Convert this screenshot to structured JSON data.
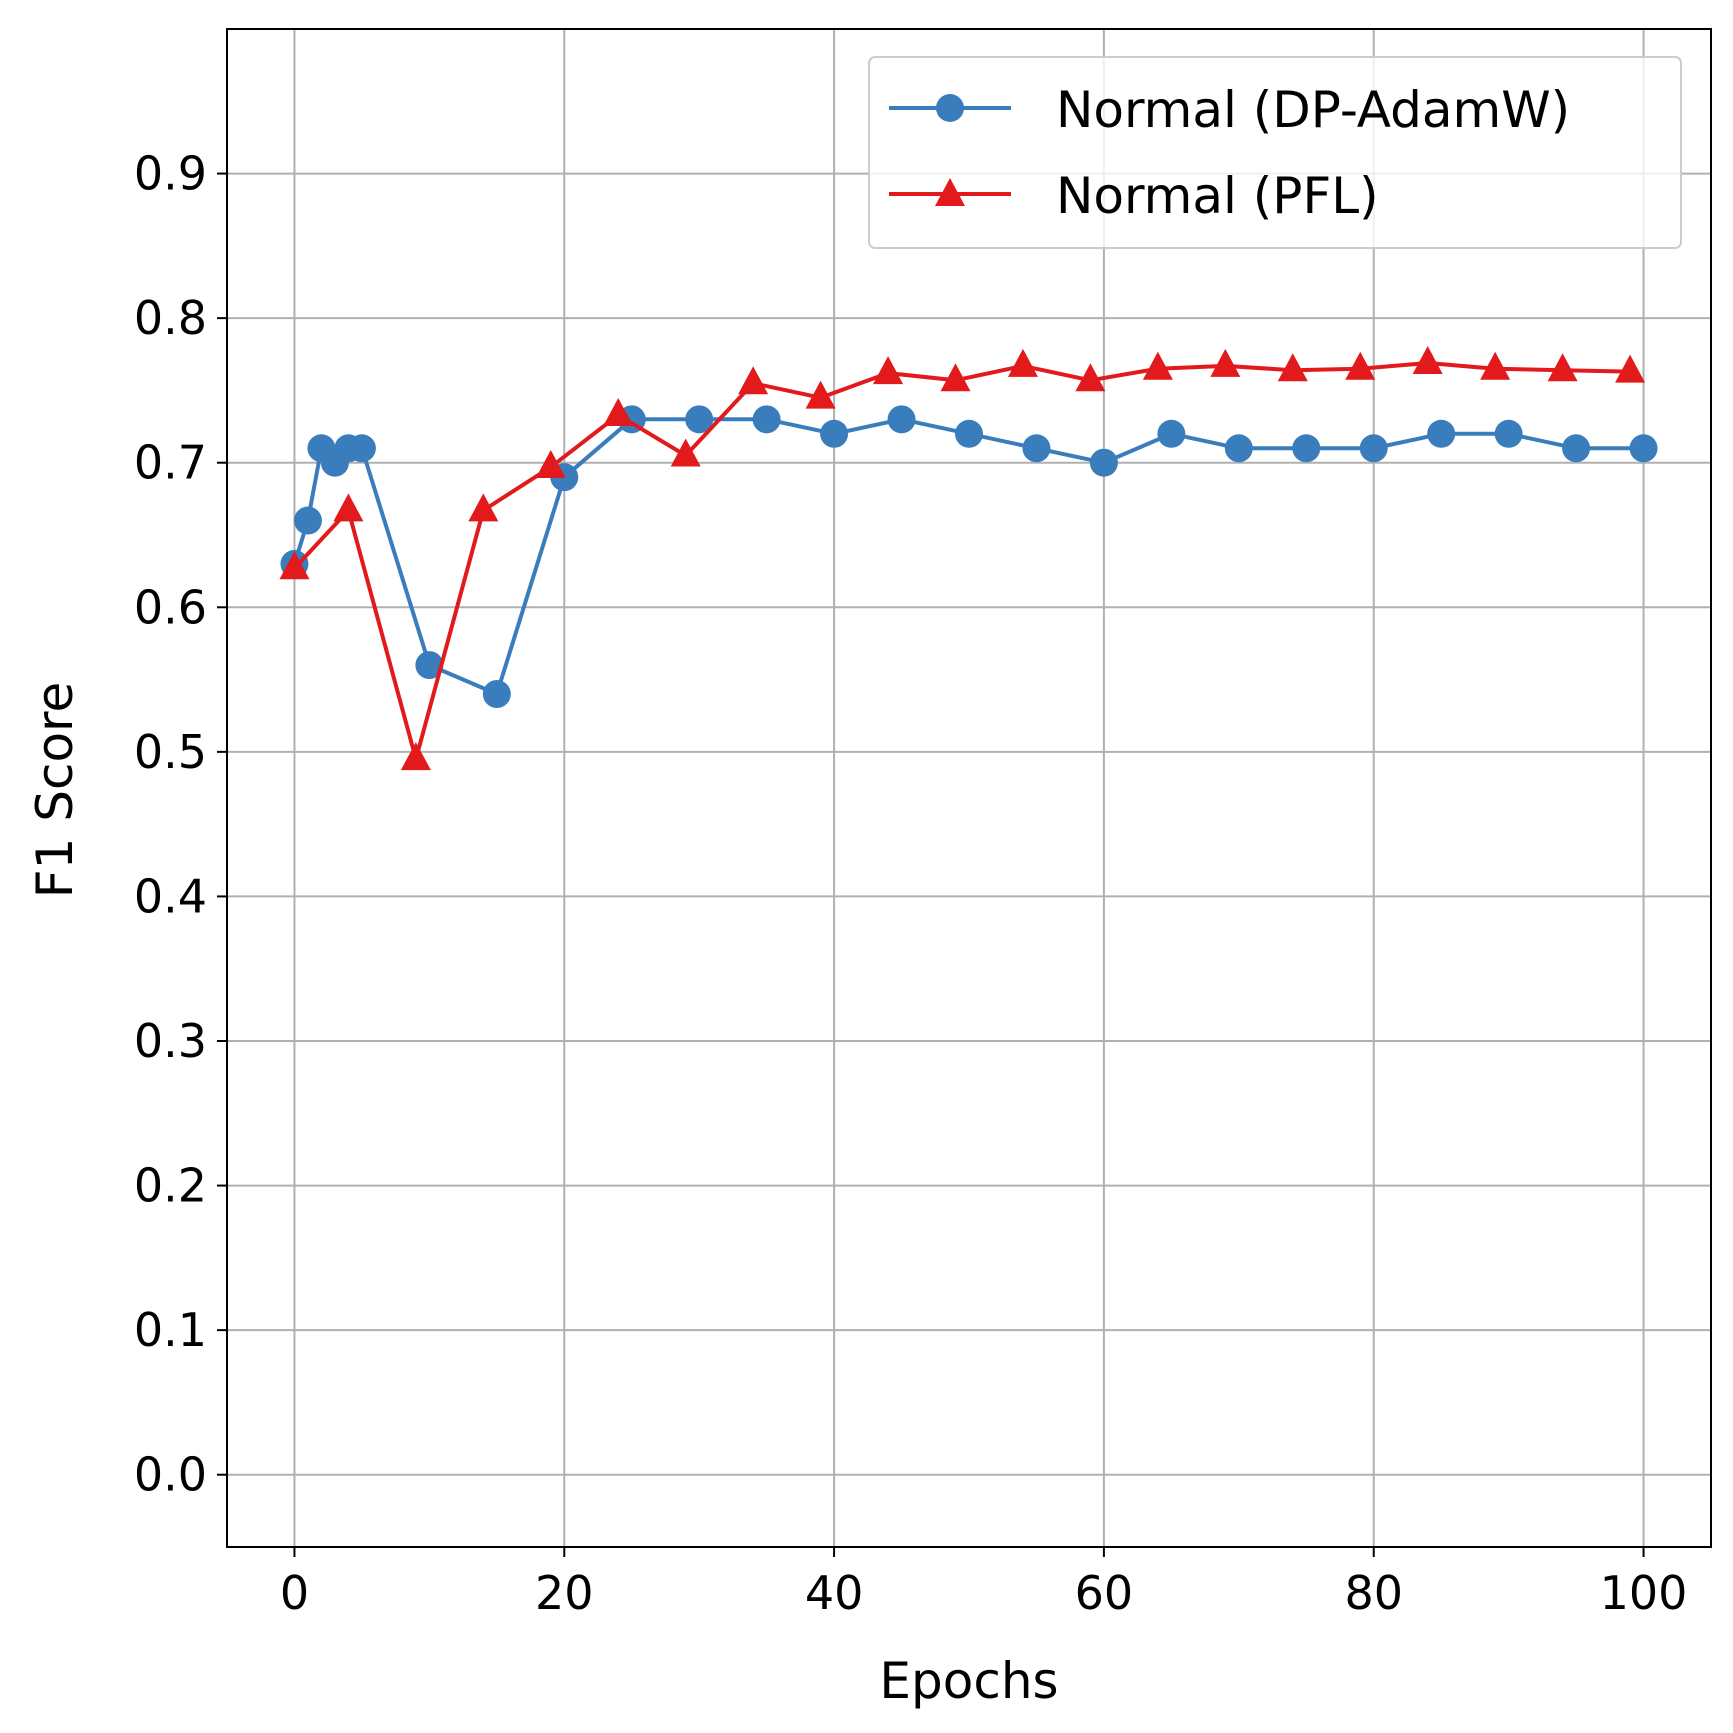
{
  "chart_data": {
    "type": "line",
    "xlabel": "Epochs",
    "ylabel": "F1 Score",
    "xlim": [
      -5,
      105
    ],
    "ylim": [
      -0.05,
      1.0
    ],
    "x_ticks": [
      0,
      20,
      40,
      60,
      80,
      100
    ],
    "x_tick_labels": [
      "0",
      "20",
      "40",
      "60",
      "80",
      "100"
    ],
    "y_ticks": [
      0.0,
      0.1,
      0.2,
      0.3,
      0.4,
      0.5,
      0.6,
      0.7,
      0.8,
      0.9
    ],
    "y_tick_labels": [
      "0.0",
      "0.1",
      "0.2",
      "0.3",
      "0.4",
      "0.5",
      "0.6",
      "0.7",
      "0.8",
      "0.9"
    ],
    "grid": true,
    "legend_position": "top-right",
    "series": [
      {
        "name": "Normal (DP-AdamW)",
        "color": "#3a7dbd",
        "marker": "circle",
        "x": [
          0,
          1,
          2,
          3,
          4,
          5,
          10,
          15,
          20,
          25,
          30,
          35,
          40,
          45,
          50,
          55,
          60,
          65,
          70,
          75,
          80,
          85,
          90,
          95,
          100
        ],
        "y": [
          0.63,
          0.66,
          0.71,
          0.7,
          0.71,
          0.71,
          0.56,
          0.54,
          0.69,
          0.73,
          0.73,
          0.73,
          0.72,
          0.73,
          0.72,
          0.71,
          0.7,
          0.72,
          0.71,
          0.71,
          0.71,
          0.72,
          0.72,
          0.71,
          0.71
        ]
      },
      {
        "name": "Normal (PFL)",
        "color": "#e31a1c",
        "marker": "triangle",
        "x": [
          0,
          4,
          9,
          14,
          19,
          24,
          29,
          34,
          39,
          44,
          49,
          54,
          59,
          64,
          69,
          74,
          79,
          84,
          89,
          94,
          99
        ],
        "y": [
          0.627,
          0.667,
          0.495,
          0.667,
          0.697,
          0.733,
          0.705,
          0.755,
          0.745,
          0.762,
          0.757,
          0.767,
          0.757,
          0.765,
          0.767,
          0.764,
          0.765,
          0.769,
          0.765,
          0.764,
          0.763
        ]
      }
    ]
  }
}
